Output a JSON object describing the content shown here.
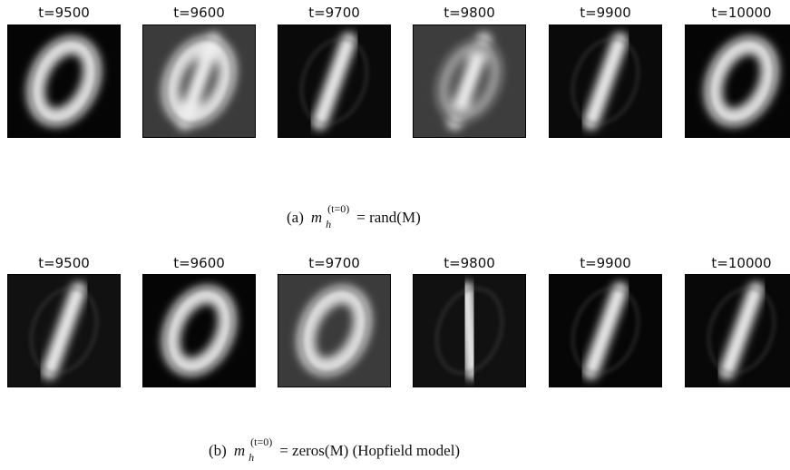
{
  "panels": [
    {
      "titles": [
        "t=9500",
        "t=9600",
        "t=9700",
        "t=9800",
        "t=9900",
        "t=10000"
      ],
      "caption": {
        "label": "(a)",
        "var": "m",
        "sub": "h",
        "sup": "(t=0)",
        "rest": "= rand(M)"
      }
    },
    {
      "titles": [
        "t=9500",
        "t=9600",
        "t=9700",
        "t=9800",
        "t=9900",
        "t=10000"
      ],
      "caption": {
        "label": "(b)",
        "var": "m",
        "sub": "h",
        "sup": "(t=0)",
        "rest": "= zeros(M) (Hopfield model)"
      }
    }
  ]
}
